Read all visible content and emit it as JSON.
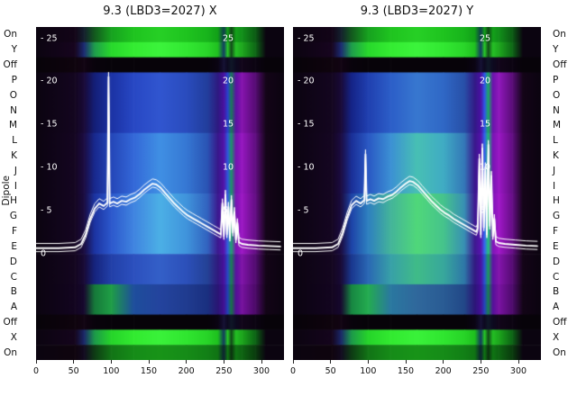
{
  "ylabel": "Dipole",
  "row_labels": [
    "On",
    "Y",
    "Off",
    "P",
    "O",
    "N",
    "M",
    "L",
    "K",
    "J",
    "I",
    "H",
    "G",
    "F",
    "E",
    "D",
    "C",
    "B",
    "A",
    "Off",
    "X",
    "On"
  ],
  "x_ticks": [
    0,
    50,
    100,
    150,
    200,
    250,
    300
  ],
  "inner_ticks": {
    "left": [
      {
        "label": "- 25",
        "v": 25
      },
      {
        "label": "- 20",
        "v": 20
      },
      {
        "label": "- 15",
        "v": 15
      },
      {
        "label": "- 10",
        "v": 10
      },
      {
        "label": "- 5",
        "v": 5
      },
      {
        "label": "0",
        "v": 0
      }
    ],
    "right": [
      {
        "label": "25",
        "v": 25
      },
      {
        "label": "20",
        "v": 20
      },
      {
        "label": "15",
        "v": 15
      },
      {
        "label": "10",
        "v": 10
      },
      {
        "label": "5",
        "v": 5
      }
    ]
  },
  "chart_data": [
    {
      "type": "heatmap",
      "title": "9.3 (LBD3=2027) X",
      "x_range": [
        0,
        330
      ],
      "value_range": [
        0,
        25
      ],
      "grid": false,
      "x_breaks": [
        0,
        52,
        64,
        78,
        100,
        130,
        165,
        200,
        228,
        242,
        250,
        255,
        260,
        266,
        274,
        292,
        306,
        330
      ],
      "row_groups": [
        {
          "rows": [
            0,
            0
          ],
          "colors": [
            "#0b0410",
            "#130518",
            "#14202e",
            "#135a1e",
            "#17a21f",
            "#1fc41f",
            "#27d026",
            "#1fc41f",
            "#18b41c",
            "#12a018",
            "#0e3c4a",
            "#14a01a",
            "#0f4416",
            "#14a01a",
            "#12901a",
            "#0c5c14",
            "#0b0410",
            "#0b0410"
          ]
        },
        {
          "rows": [
            1,
            1
          ],
          "colors": [
            "#0b0410",
            "#17051f",
            "#1b2a72",
            "#1f9e4c",
            "#28d82c",
            "#34ec32",
            "#3cf43c",
            "#32e832",
            "#2ad62a",
            "#20c020",
            "#123c60",
            "#28c828",
            "#124c1a",
            "#26c026",
            "#1ea81e",
            "#0e6816",
            "#0b0410",
            "#0b0410"
          ]
        },
        {
          "rows": [
            2,
            2
          ],
          "colors": [
            "#070309",
            "#0f040e",
            "#120413",
            "#09030c",
            "#070309",
            "#070309",
            "#070309",
            "#070309",
            "#070309",
            "#0b0413",
            "#141033",
            "#0d0a20",
            "#101828",
            "#0d0a20",
            "#12061a",
            "#0c0412",
            "#070309",
            "#070309"
          ]
        },
        {
          "rows": [
            3,
            6
          ],
          "colors": [
            "#0b0410",
            "#140620",
            "#190a38",
            "#141f78",
            "#1b32a4",
            "#2848c4",
            "#3156d0",
            "#2a4cbe",
            "#223e9c",
            "#2e1a80",
            "#480fa0",
            "#2a42cc",
            "#1a7a58",
            "#5c12a4",
            "#8614ae",
            "#560c74",
            "#140518",
            "#0b0410"
          ]
        },
        {
          "rows": [
            7,
            10
          ],
          "colors": [
            "#0b0410",
            "#150622",
            "#1b0c42",
            "#18298e",
            "#2446b8",
            "#3468d8",
            "#4090e4",
            "#3678d4",
            "#2a54b4",
            "#38188a",
            "#5012a8",
            "#3058dc",
            "#1e9468",
            "#7415b0",
            "#9617c0",
            "#600e80",
            "#150519",
            "#0b0410"
          ]
        },
        {
          "rows": [
            11,
            14
          ],
          "colors": [
            "#0b0410",
            "#150622",
            "#1a0c40",
            "#1c34a2",
            "#2c58cc",
            "#4084e0",
            "#4cb0e6",
            "#4094dc",
            "#3264c0",
            "#3c1a8e",
            "#5413ac",
            "#3460e0",
            "#22a070",
            "#7a16b4",
            "#9c18c4",
            "#640e84",
            "#150519",
            "#0b0410"
          ]
        },
        {
          "rows": [
            15,
            16
          ],
          "colors": [
            "#0b0410",
            "#140620",
            "#180a36",
            "#16247e",
            "#2240a8",
            "#2c50be",
            "#3460c8",
            "#2c50ba",
            "#244296",
            "#301a7e",
            "#46109c",
            "#2a48c4",
            "#1a8054",
            "#5a12a0",
            "#8014a8",
            "#520c70",
            "#140518",
            "#0b0410"
          ]
        },
        {
          "rows": [
            17,
            18
          ],
          "colors": [
            "#0b0410",
            "#130520",
            "#16082e",
            "#167a3a",
            "#1f9e46",
            "#1e4e9c",
            "#24449e",
            "#203c90",
            "#1a3080",
            "#2a1674",
            "#400e92",
            "#2440b4",
            "#167446",
            "#521096",
            "#76129e",
            "#4c0a68",
            "#130517",
            "#0b0410"
          ]
        },
        {
          "rows": [
            19,
            19
          ],
          "colors": [
            "#070309",
            "#0f040e",
            "#120413",
            "#09030c",
            "#070309",
            "#070309",
            "#070309",
            "#070309",
            "#070309",
            "#0b0413",
            "#141033",
            "#0d0a20",
            "#101828",
            "#0d0a20",
            "#12061a",
            "#0c0412",
            "#070309",
            "#070309"
          ]
        },
        {
          "rows": [
            20,
            20
          ],
          "colors": [
            "#0b0410",
            "#15051d",
            "#1a2768",
            "#1d9a4a",
            "#26d42a",
            "#32ea30",
            "#3af23a",
            "#30e630",
            "#28d428",
            "#1ec01e",
            "#113a5c",
            "#26c626",
            "#114a19",
            "#24be24",
            "#1ca61c",
            "#0d6415",
            "#0b0410",
            "#0b0410"
          ]
        },
        {
          "rows": [
            21,
            21
          ],
          "colors": [
            "#0b0410",
            "#0f040e",
            "#120a20",
            "#0e3c14",
            "#127416",
            "#168c18",
            "#189418",
            "#168c18",
            "#128016",
            "#107414",
            "#0c2030",
            "#107414",
            "#0c3010",
            "#107414",
            "#0e6412",
            "#0a3c0e",
            "#0b0410",
            "#0b0410"
          ]
        }
      ],
      "line_offsets": [
        0.55,
        0,
        -0.4
      ],
      "trace_points": [
        [
          0,
          0.6
        ],
        [
          30,
          0.6
        ],
        [
          52,
          0.7
        ],
        [
          60,
          1.1
        ],
        [
          66,
          2.2
        ],
        [
          72,
          4.0
        ],
        [
          78,
          5.2
        ],
        [
          84,
          5.8
        ],
        [
          90,
          5.5
        ],
        [
          95,
          5.9
        ],
        [
          96.5,
          20.5
        ],
        [
          98,
          5.8
        ],
        [
          103,
          6.0
        ],
        [
          108,
          5.8
        ],
        [
          114,
          6.1
        ],
        [
          120,
          6.0
        ],
        [
          126,
          6.3
        ],
        [
          132,
          6.5
        ],
        [
          138,
          6.9
        ],
        [
          144,
          7.4
        ],
        [
          150,
          7.8
        ],
        [
          155,
          8.1
        ],
        [
          160,
          8.0
        ],
        [
          166,
          7.6
        ],
        [
          172,
          7.0
        ],
        [
          178,
          6.4
        ],
        [
          184,
          5.8
        ],
        [
          190,
          5.3
        ],
        [
          196,
          4.8
        ],
        [
          202,
          4.4
        ],
        [
          208,
          4.1
        ],
        [
          214,
          3.8
        ],
        [
          220,
          3.5
        ],
        [
          228,
          3.1
        ],
        [
          236,
          2.7
        ],
        [
          242,
          2.4
        ],
        [
          246,
          2.2
        ],
        [
          248,
          5.8
        ],
        [
          250,
          2.0
        ],
        [
          252,
          6.8
        ],
        [
          254,
          2.2
        ],
        [
          256,
          5.4
        ],
        [
          258,
          1.8
        ],
        [
          260,
          6.2
        ],
        [
          262,
          2.4
        ],
        [
          264,
          4.8
        ],
        [
          266,
          1.6
        ],
        [
          268,
          3.5
        ],
        [
          270,
          1.3
        ],
        [
          274,
          1.1
        ],
        [
          282,
          1.0
        ],
        [
          296,
          0.9
        ],
        [
          310,
          0.85
        ],
        [
          325,
          0.8
        ]
      ]
    },
    {
      "type": "heatmap",
      "title": "9.3 (LBD3=2027) Y",
      "x_range": [
        0,
        330
      ],
      "value_range": [
        0,
        25
      ],
      "grid": false,
      "x_breaks": [
        0,
        52,
        64,
        78,
        100,
        130,
        165,
        200,
        228,
        242,
        250,
        255,
        260,
        266,
        274,
        292,
        306,
        330
      ],
      "row_groups": [
        {
          "rows": [
            0,
            0
          ],
          "colors": [
            "#0b0410",
            "#130518",
            "#14202e",
            "#135a1e",
            "#17a21f",
            "#1fc41f",
            "#27d026",
            "#1fc41f",
            "#18b41c",
            "#12a018",
            "#0e3c4a",
            "#14a01a",
            "#0f4416",
            "#14a01a",
            "#12901a",
            "#0c5c14",
            "#0b0410",
            "#0b0410"
          ]
        },
        {
          "rows": [
            1,
            1
          ],
          "colors": [
            "#0b0410",
            "#17051f",
            "#1b2a72",
            "#1f9e4c",
            "#28d82c",
            "#34ec32",
            "#3cf43c",
            "#32e832",
            "#2ad62a",
            "#20c020",
            "#123c60",
            "#28c828",
            "#124c1a",
            "#26c026",
            "#1ea81e",
            "#0e6816",
            "#0b0410",
            "#0b0410"
          ]
        },
        {
          "rows": [
            2,
            2
          ],
          "colors": [
            "#070309",
            "#0f040e",
            "#120413",
            "#09030c",
            "#070309",
            "#070309",
            "#070309",
            "#070309",
            "#070309",
            "#0b0413",
            "#141033",
            "#0d0a20",
            "#101828",
            "#0d0a20",
            "#12061a",
            "#0c0412",
            "#070309",
            "#070309"
          ]
        },
        {
          "rows": [
            3,
            6
          ],
          "colors": [
            "#0b0410",
            "#140620",
            "#190a38",
            "#152488",
            "#2040b0",
            "#2c5ec8",
            "#3878d0",
            "#3068c6",
            "#2850a8",
            "#321a86",
            "#4a10a4",
            "#3056e8",
            "#1caa64",
            "#6a14ac",
            "#9018bc",
            "#5a0d78",
            "#140518",
            "#0b0410"
          ]
        },
        {
          "rows": [
            7,
            10
          ],
          "colors": [
            "#0b0410",
            "#150622",
            "#1b0c42",
            "#1a3098",
            "#2a58c4",
            "#3c90d4",
            "#48c0b4",
            "#40acc4",
            "#3478b8",
            "#3a188c",
            "#5212aa",
            "#3462ec",
            "#20b874",
            "#7815b4",
            "#9a17c4",
            "#620e82",
            "#150519",
            "#0b0410"
          ]
        },
        {
          "rows": [
            11,
            14
          ],
          "colors": [
            "#0b0410",
            "#150622",
            "#1a0c40",
            "#1e44a8",
            "#2e80c0",
            "#44b49a",
            "#50d87a",
            "#46c48c",
            "#3890b4",
            "#3e1a90",
            "#5613ae",
            "#3668f0",
            "#24c47e",
            "#7e16b8",
            "#a018c8",
            "#660e86",
            "#150519",
            "#0b0410"
          ]
        },
        {
          "rows": [
            15,
            16
          ],
          "colors": [
            "#0b0410",
            "#140620",
            "#180a36",
            "#1a3890",
            "#2a68b4",
            "#38a0a8",
            "#40bc88",
            "#38a89c",
            "#2e78a8",
            "#321a82",
            "#4810a0",
            "#2c50d0",
            "#1c9c5c",
            "#5e13a4",
            "#8415ac",
            "#560c74",
            "#140518",
            "#0b0410"
          ]
        },
        {
          "rows": [
            17,
            18
          ],
          "colors": [
            "#0b0410",
            "#130520",
            "#16082e",
            "#188842",
            "#24ac50",
            "#2a78a0",
            "#30689c",
            "#2a5c94",
            "#224888",
            "#2c1678",
            "#420e96",
            "#2644bc",
            "#188050",
            "#54119a",
            "#7a13a2",
            "#4e0b6c",
            "#130517",
            "#0b0410"
          ]
        },
        {
          "rows": [
            19,
            19
          ],
          "colors": [
            "#070309",
            "#0f040e",
            "#120413",
            "#09030c",
            "#070309",
            "#070309",
            "#070309",
            "#070309",
            "#070309",
            "#0b0413",
            "#141033",
            "#0d0a20",
            "#101828",
            "#0d0a20",
            "#12061a",
            "#0c0412",
            "#070309",
            "#070309"
          ]
        },
        {
          "rows": [
            20,
            20
          ],
          "colors": [
            "#0b0410",
            "#15051d",
            "#1a2768",
            "#1d9a4a",
            "#26d42a",
            "#32ea30",
            "#3af23a",
            "#30e630",
            "#28d428",
            "#1ec01e",
            "#113a5c",
            "#26c626",
            "#114a19",
            "#24be24",
            "#1ca61c",
            "#0d6415",
            "#0b0410",
            "#0b0410"
          ]
        },
        {
          "rows": [
            21,
            21
          ],
          "colors": [
            "#0b0410",
            "#0f040e",
            "#120a20",
            "#0e3c14",
            "#127416",
            "#168c18",
            "#189418",
            "#168c18",
            "#128016",
            "#107414",
            "#0c2030",
            "#107414",
            "#0c3010",
            "#107414",
            "#0e6412",
            "#0a3c0e",
            "#0b0410",
            "#0b0410"
          ]
        }
      ],
      "line_offsets": [
        0.55,
        0,
        -0.4
      ],
      "trace_points": [
        [
          0,
          0.6
        ],
        [
          30,
          0.6
        ],
        [
          52,
          0.7
        ],
        [
          60,
          1.1
        ],
        [
          66,
          2.4
        ],
        [
          72,
          4.2
        ],
        [
          78,
          5.6
        ],
        [
          84,
          6.1
        ],
        [
          90,
          5.8
        ],
        [
          95,
          6.2
        ],
        [
          96.5,
          11.5
        ],
        [
          98,
          6.1
        ],
        [
          103,
          6.3
        ],
        [
          108,
          6.1
        ],
        [
          114,
          6.4
        ],
        [
          120,
          6.3
        ],
        [
          126,
          6.6
        ],
        [
          132,
          6.8
        ],
        [
          138,
          7.2
        ],
        [
          144,
          7.7
        ],
        [
          150,
          8.1
        ],
        [
          155,
          8.4
        ],
        [
          160,
          8.3
        ],
        [
          166,
          7.9
        ],
        [
          172,
          7.3
        ],
        [
          178,
          6.7
        ],
        [
          184,
          6.1
        ],
        [
          190,
          5.6
        ],
        [
          196,
          5.1
        ],
        [
          202,
          4.7
        ],
        [
          208,
          4.4
        ],
        [
          214,
          4.0
        ],
        [
          220,
          3.7
        ],
        [
          228,
          3.3
        ],
        [
          236,
          2.9
        ],
        [
          240,
          2.7
        ],
        [
          244,
          2.5
        ],
        [
          246,
          3.0
        ],
        [
          248,
          11.0
        ],
        [
          250,
          2.2
        ],
        [
          252,
          12.2
        ],
        [
          254,
          3.0
        ],
        [
          256,
          10.0
        ],
        [
          258,
          2.2
        ],
        [
          260,
          12.6
        ],
        [
          262,
          3.2
        ],
        [
          264,
          9.0
        ],
        [
          266,
          2.0
        ],
        [
          268,
          4.0
        ],
        [
          270,
          1.4
        ],
        [
          274,
          1.2
        ],
        [
          282,
          1.1
        ],
        [
          296,
          1.0
        ],
        [
          310,
          0.9
        ],
        [
          325,
          0.85
        ]
      ]
    }
  ]
}
